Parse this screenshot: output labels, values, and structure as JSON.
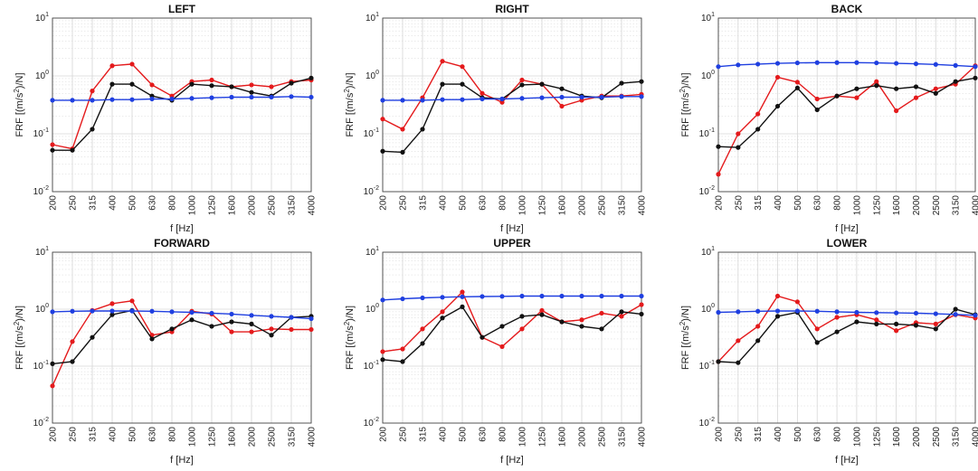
{
  "chart_data": [
    {
      "type": "line",
      "title": "LEFT",
      "xlabel": "f [Hz]",
      "ylabel": "FRF [(m/s2)/N]",
      "categories": [
        "200",
        "250",
        "315",
        "400",
        "500",
        "630",
        "800",
        "1000",
        "1250",
        "1600",
        "2000",
        "2500",
        "3150",
        "4000"
      ],
      "ylim": [
        0.01,
        10
      ],
      "yscale": "log",
      "yticks": [
        "10-2",
        "10-1",
        "100",
        "101"
      ],
      "grid": true,
      "series": [
        {
          "color": "#e41a1c",
          "values": [
            0.065,
            0.055,
            0.55,
            1.5,
            1.6,
            0.7,
            0.45,
            0.8,
            0.85,
            0.65,
            0.7,
            0.65,
            0.8,
            0.85
          ]
        },
        {
          "color": "#111111",
          "values": [
            0.052,
            0.052,
            0.12,
            0.72,
            0.72,
            0.45,
            0.38,
            0.72,
            0.68,
            0.65,
            0.52,
            0.45,
            0.75,
            0.92
          ]
        },
        {
          "color": "#1f3fe0",
          "values": [
            0.38,
            0.38,
            0.38,
            0.39,
            0.39,
            0.4,
            0.4,
            0.41,
            0.42,
            0.43,
            0.43,
            0.43,
            0.44,
            0.43
          ]
        }
      ]
    },
    {
      "type": "line",
      "title": "RIGHT",
      "xlabel": "f [Hz]",
      "ylabel": "FRF [(m/s2)/N]",
      "categories": [
        "200",
        "250",
        "315",
        "400",
        "500",
        "630",
        "800",
        "1000",
        "1250",
        "1600",
        "2000",
        "2500",
        "3150",
        "4000"
      ],
      "ylim": [
        0.01,
        10
      ],
      "yscale": "log",
      "yticks": [
        "10-2",
        "10-1",
        "100",
        "101"
      ],
      "grid": true,
      "series": [
        {
          "color": "#e41a1c",
          "values": [
            0.18,
            0.12,
            0.42,
            1.8,
            1.45,
            0.5,
            0.35,
            0.85,
            0.72,
            0.3,
            0.38,
            0.45,
            0.45,
            0.48
          ]
        },
        {
          "color": "#111111",
          "values": [
            0.05,
            0.048,
            0.12,
            0.72,
            0.72,
            0.42,
            0.4,
            0.7,
            0.72,
            0.6,
            0.45,
            0.42,
            0.75,
            0.8
          ]
        },
        {
          "color": "#1f3fe0",
          "values": [
            0.38,
            0.38,
            0.38,
            0.39,
            0.39,
            0.4,
            0.4,
            0.41,
            0.42,
            0.43,
            0.43,
            0.43,
            0.44,
            0.44
          ]
        }
      ]
    },
    {
      "type": "line",
      "title": "BACK",
      "xlabel": "f [Hz]",
      "ylabel": "FRF [(m/s2)/N]",
      "categories": [
        "200",
        "250",
        "315",
        "400",
        "500",
        "630",
        "800",
        "1000",
        "1250",
        "1600",
        "2000",
        "2500",
        "3150",
        "4000"
      ],
      "ylim": [
        0.01,
        10
      ],
      "yscale": "log",
      "yticks": [
        "10-2",
        "10-1",
        "100",
        "101"
      ],
      "grid": true,
      "series": [
        {
          "color": "#e41a1c",
          "values": [
            0.02,
            0.1,
            0.22,
            0.95,
            0.78,
            0.4,
            0.45,
            0.42,
            0.8,
            0.25,
            0.42,
            0.6,
            0.72,
            1.5
          ]
        },
        {
          "color": "#111111",
          "values": [
            0.06,
            0.058,
            0.12,
            0.3,
            0.62,
            0.26,
            0.45,
            0.6,
            0.68,
            0.6,
            0.65,
            0.5,
            0.8,
            0.92
          ]
        },
        {
          "color": "#1f3fe0",
          "values": [
            1.45,
            1.55,
            1.6,
            1.65,
            1.68,
            1.7,
            1.7,
            1.7,
            1.68,
            1.65,
            1.62,
            1.58,
            1.52,
            1.45
          ]
        }
      ]
    },
    {
      "type": "line",
      "title": "FORWARD",
      "xlabel": "f [Hz]",
      "ylabel": "FRF [(m/s2)/N]",
      "categories": [
        "200",
        "250",
        "315",
        "400",
        "500",
        "630",
        "800",
        "1000",
        "1250",
        "1600",
        "2000",
        "2500",
        "3150",
        "4000"
      ],
      "ylim": [
        0.01,
        10
      ],
      "yscale": "log",
      "yticks": [
        "10-2",
        "10-1",
        "100",
        "101"
      ],
      "grid": true,
      "series": [
        {
          "color": "#e41a1c",
          "values": [
            0.045,
            0.27,
            0.95,
            1.25,
            1.4,
            0.35,
            0.4,
            0.92,
            0.82,
            0.4,
            0.4,
            0.45,
            0.44,
            0.44
          ]
        },
        {
          "color": "#111111",
          "values": [
            0.11,
            0.12,
            0.32,
            0.8,
            0.95,
            0.3,
            0.45,
            0.65,
            0.5,
            0.6,
            0.55,
            0.35,
            0.72,
            0.75
          ]
        },
        {
          "color": "#1f3fe0",
          "values": [
            0.9,
            0.92,
            0.93,
            0.93,
            0.93,
            0.92,
            0.9,
            0.88,
            0.85,
            0.82,
            0.78,
            0.75,
            0.72,
            0.68
          ]
        }
      ]
    },
    {
      "type": "line",
      "title": "UPPER",
      "xlabel": "f [Hz]",
      "ylabel": "FRF [(m/s2)/N]",
      "categories": [
        "200",
        "250",
        "315",
        "400",
        "500",
        "630",
        "800",
        "1000",
        "1250",
        "1600",
        "2000",
        "2500",
        "3150",
        "4000"
      ],
      "ylim": [
        0.01,
        10
      ],
      "yscale": "log",
      "yticks": [
        "10-2",
        "10-1",
        "100",
        "101"
      ],
      "grid": true,
      "series": [
        {
          "color": "#e41a1c",
          "values": [
            0.18,
            0.2,
            0.45,
            0.9,
            2.0,
            0.32,
            0.22,
            0.45,
            0.95,
            0.6,
            0.65,
            0.85,
            0.75,
            1.2
          ]
        },
        {
          "color": "#111111",
          "values": [
            0.13,
            0.12,
            0.25,
            0.7,
            1.1,
            0.32,
            0.5,
            0.75,
            0.8,
            0.6,
            0.5,
            0.45,
            0.9,
            0.82
          ]
        },
        {
          "color": "#1f3fe0",
          "values": [
            1.45,
            1.52,
            1.58,
            1.62,
            1.65,
            1.67,
            1.68,
            1.7,
            1.7,
            1.7,
            1.7,
            1.7,
            1.7,
            1.7
          ]
        }
      ]
    },
    {
      "type": "line",
      "title": "LOWER",
      "xlabel": "f [Hz]",
      "ylabel": "FRF [(m/s2)/N]",
      "categories": [
        "200",
        "250",
        "315",
        "400",
        "500",
        "630",
        "800",
        "1000",
        "1250",
        "1600",
        "2000",
        "2500",
        "3150",
        "4000"
      ],
      "ylim": [
        0.01,
        10
      ],
      "yscale": "log",
      "yticks": [
        "10-2",
        "10-1",
        "100",
        "101"
      ],
      "grid": true,
      "series": [
        {
          "color": "#e41a1c",
          "values": [
            0.12,
            0.28,
            0.5,
            1.7,
            1.35,
            0.45,
            0.72,
            0.8,
            0.65,
            0.42,
            0.58,
            0.55,
            0.8,
            0.7
          ]
        },
        {
          "color": "#111111",
          "values": [
            0.12,
            0.115,
            0.28,
            0.75,
            0.88,
            0.26,
            0.4,
            0.6,
            0.55,
            0.55,
            0.52,
            0.45,
            1.0,
            0.8
          ]
        },
        {
          "color": "#1f3fe0",
          "values": [
            0.88,
            0.9,
            0.92,
            0.93,
            0.93,
            0.92,
            0.9,
            0.88,
            0.87,
            0.86,
            0.85,
            0.83,
            0.81,
            0.78
          ]
        }
      ]
    }
  ]
}
